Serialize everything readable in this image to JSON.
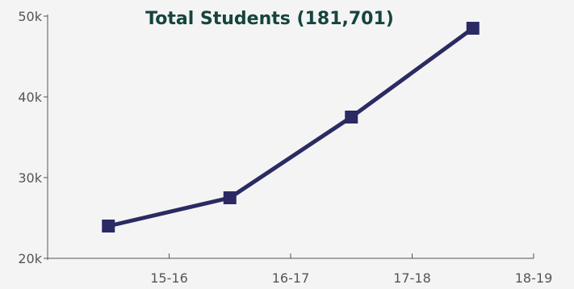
{
  "chart_data": {
    "type": "line",
    "title": "Total Students (181,701)",
    "xlabel": "",
    "ylabel": "",
    "categories": [
      "15-16",
      "16-17",
      "17-18",
      "18-19"
    ],
    "values": [
      24000,
      27500,
      37500,
      48500
    ],
    "ylim": [
      20000,
      50000
    ],
    "yticks": [
      20000,
      30000,
      40000,
      50000
    ],
    "ytick_labels": [
      "20k",
      "30k",
      "40k",
      "50k"
    ],
    "xtick_labels": [
      "15-16",
      "16-17",
      "17-18",
      "18-19"
    ],
    "grid": false,
    "legend": "none",
    "marker": "square"
  },
  "colors": {
    "background": "#f4f4f4",
    "series": "#2b2a63",
    "title": "#16443e",
    "axis": "#555555",
    "tick_text": "#555555"
  }
}
